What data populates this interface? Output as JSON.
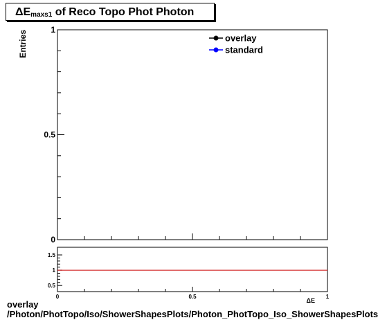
{
  "title": {
    "prefix": "ΔE",
    "subscript": "maxs1",
    "suffix": " of Reco Topo Phot Photon"
  },
  "chart_data": [
    {
      "type": "line",
      "ylabel": "Entries",
      "xlim": [
        0,
        1
      ],
      "ylim": [
        0,
        1
      ],
      "x_ticks": [],
      "y_ticks": [
        {
          "v": 0,
          "label": "0"
        },
        {
          "v": 0.5,
          "label": "0.5"
        },
        {
          "v": 1,
          "label": "1"
        }
      ],
      "series": [
        {
          "name": "overlay",
          "color": "#000000",
          "x": [],
          "y": []
        },
        {
          "name": "standard",
          "color": "#0000ff",
          "x": [],
          "y": []
        }
      ],
      "legend": "top-right"
    },
    {
      "type": "line",
      "xlabel": "ΔE",
      "xlim": [
        0,
        1
      ],
      "ylim": [
        0.3,
        1.75
      ],
      "x_ticks": [
        {
          "v": 0,
          "label": "0"
        },
        {
          "v": 0.5,
          "label": "0.5"
        },
        {
          "v": 1,
          "label": "1"
        }
      ],
      "y_ticks": [
        {
          "v": 0.5,
          "label": "0.5"
        },
        {
          "v": 1,
          "label": "1"
        },
        {
          "v": 1.5,
          "label": "1.5"
        }
      ],
      "reference_line": {
        "y": 1,
        "color": "#cc0000"
      }
    }
  ],
  "footer": {
    "line1": "overlay",
    "line2": "/Photon/PhotTopo/Iso/ShowerShapesPlots/Photon_PhotTopo_Iso_ShowerShapesPlots"
  }
}
